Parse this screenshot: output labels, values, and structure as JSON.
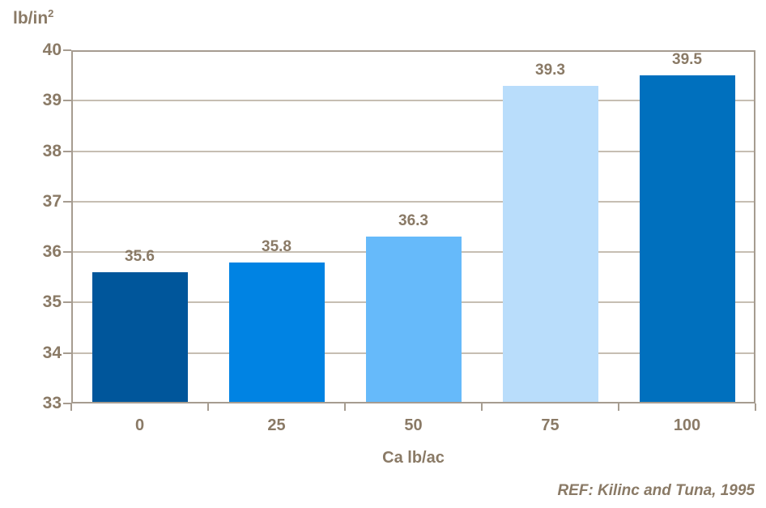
{
  "chart_data": {
    "type": "bar",
    "title": "",
    "ylabel": "lb/in",
    "ylabel_superscript": "2",
    "xlabel": "Ca lb/ac",
    "categories": [
      "0",
      "25",
      "50",
      "75",
      "100"
    ],
    "values": [
      35.6,
      35.8,
      36.3,
      39.3,
      39.5
    ],
    "value_labels": [
      "35.6",
      "35.8",
      "36.3",
      "39.3",
      "39.5"
    ],
    "ylim": [
      33,
      40
    ],
    "yticks": [
      33,
      34,
      35,
      36,
      37,
      38,
      39,
      40
    ],
    "ytick_step": 1,
    "grid": true,
    "legend_position": "none",
    "bar_colors": [
      "#00569B",
      "#0083E3",
      "#66BAFA",
      "#B9DDFB",
      "#0070BE"
    ],
    "reference": "REF: Kilinc and Tuna, 1995"
  },
  "colors": {
    "text": "#8a7a66",
    "axis_border": "#a69c90",
    "gridline": "#c6beb2",
    "background": "#ffffff"
  }
}
